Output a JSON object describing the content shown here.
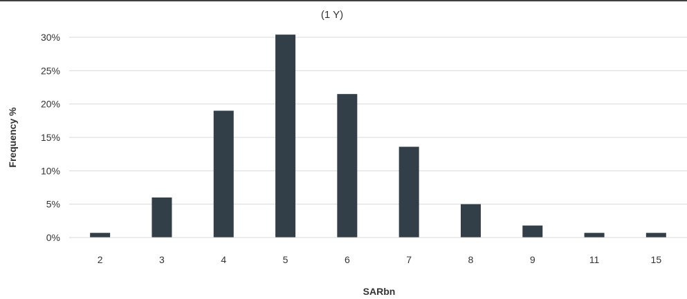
{
  "chart_data": {
    "type": "bar",
    "title": "(1 Y)",
    "xlabel": "SARbn",
    "ylabel": "Frequency %",
    "categories": [
      "2",
      "3",
      "4",
      "5",
      "6",
      "7",
      "8",
      "9",
      "11",
      "15"
    ],
    "values": [
      0.7,
      6.0,
      19.0,
      30.4,
      21.5,
      13.6,
      5.0,
      1.8,
      0.7,
      0.7
    ],
    "yticks": [
      0,
      5,
      10,
      15,
      20,
      25,
      30
    ],
    "ytick_labels": [
      "0%",
      "5%",
      "10%",
      "15%",
      "20%",
      "25%",
      "30%"
    ],
    "ylim": [
      0,
      30
    ],
    "grid": true,
    "legend": "none",
    "colors": {
      "bar": "#333f48",
      "grid": "#d9d9d9",
      "top_rule": "#000000"
    }
  }
}
